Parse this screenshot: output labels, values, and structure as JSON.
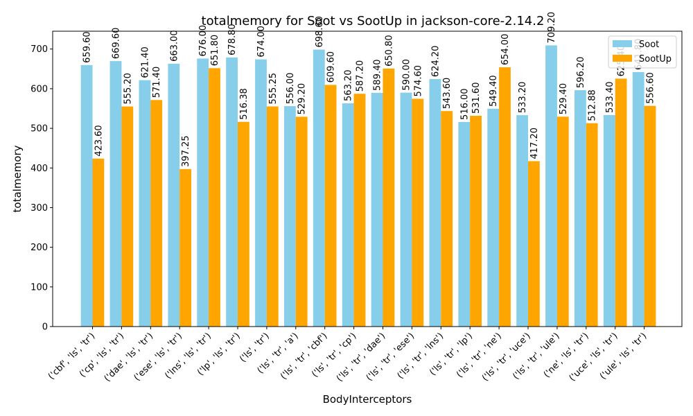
{
  "chart_data": {
    "type": "bar",
    "title": "totalmemory for Soot vs SootUp in jackson-core-2.14.2",
    "xlabel": "BodyInterceptors",
    "ylabel": "totalmemory",
    "ylim": [
      0,
      745
    ],
    "yticks": [
      0,
      100,
      200,
      300,
      400,
      500,
      600,
      700
    ],
    "grid": false,
    "legend_position": "top-right",
    "categories": [
      "('cbf', 'ls', 'tr')",
      "('cp', 'ls', 'tr')",
      "('dae', 'ls', 'tr')",
      "('ese', 'ls', 'tr')",
      "('lns', 'ls', 'tr')",
      "('lp', 'ls', 'tr')",
      "('ls', 'tr')",
      "('ls', 'tr', 'a')",
      "('ls', 'tr', 'cbf')",
      "('ls', 'tr', 'cp')",
      "('ls', 'tr', 'dae')",
      "('ls', 'tr', 'ese')",
      "('ls', 'tr', 'lns')",
      "('ls', 'tr', 'lp')",
      "('ls', 'tr', 'ne')",
      "('ls', 'tr', 'uce')",
      "('ls', 'tr', 'ule')",
      "('ne', 'ls', 'tr')",
      "('uce', 'ls', 'tr')",
      "('ule', 'ls', 'tr')"
    ],
    "series": [
      {
        "name": "Soot",
        "color": "#87ceeb",
        "values": [
          659.6,
          669.6,
          621.4,
          663.0,
          676.0,
          678.8,
          674.0,
          556.0,
          698.6,
          563.2,
          589.4,
          590.0,
          624.2,
          516.0,
          549.4,
          533.2,
          709.2,
          596.2,
          533.4,
          641.8
        ],
        "labels": [
          "659.60",
          "669.60",
          "621.40",
          "663.00",
          "676.00",
          "678.80",
          "674.00",
          "556.00",
          "698.60",
          "563.20",
          "589.40",
          "590.00",
          "624.20",
          "516.00",
          "549.40",
          "533.20",
          "709.20",
          "596.20",
          "533.40",
          "641.80"
        ]
      },
      {
        "name": "SootUp",
        "color": "#ffa500",
        "values": [
          423.6,
          555.2,
          571.4,
          397.25,
          651.8,
          516.38,
          555.25,
          529.2,
          609.6,
          587.2,
          650.8,
          574.6,
          543.6,
          531.6,
          654.0,
          417.2,
          529.4,
          512.88,
          625.4,
          556.6
        ],
        "labels": [
          "423.60",
          "555.20",
          "571.40",
          "397.25",
          "651.80",
          "516.38",
          "555.25",
          "529.20",
          "609.60",
          "587.20",
          "650.80",
          "574.60",
          "543.60",
          "531.60",
          "654.00",
          "417.20",
          "529.40",
          "512.88",
          "625.40",
          "556.60"
        ]
      }
    ]
  }
}
